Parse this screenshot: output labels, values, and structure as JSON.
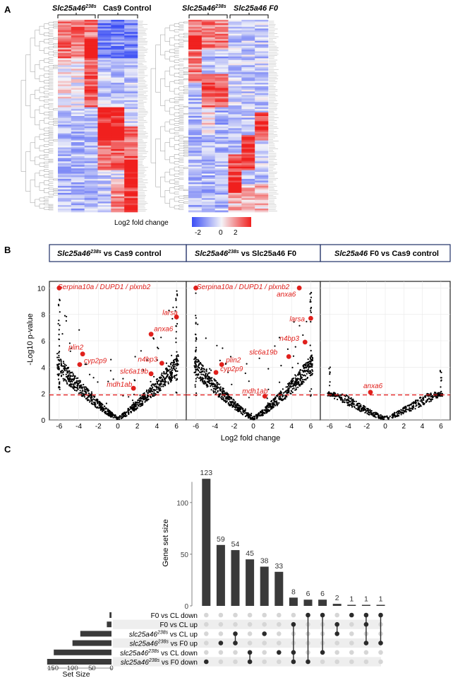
{
  "panel_labels": {
    "a": "A",
    "b": "B",
    "c": "C"
  },
  "colors": {
    "low": "#3a4df5",
    "mid": "#f4f4f8",
    "high": "#f0201e",
    "point": "#000000",
    "highlight": "#e0201c",
    "threshold": "#e02020",
    "bar": "#3a3a3a",
    "dot_on": "#2b2b2b",
    "dot_off": "#d6d6d6",
    "row_shade": "#eeeeee",
    "box_border": "#1f2f66"
  },
  "heatmap": {
    "left": {
      "group1": "Slc25a46",
      "group1_sup": "238s",
      "group2": "Cas9 Control"
    },
    "right": {
      "group1": "Slc25a46",
      "group1_sup": "238s",
      "group2": "Slc25a46 F0"
    },
    "legend_title": "Log2 fold change",
    "legend_ticks": [
      "-2",
      "0",
      "2"
    ]
  },
  "volcano": {
    "ylabel": "-Log10 p-value",
    "xlabel": "Log2 fold change",
    "yticks": [
      "0",
      "2",
      "4",
      "6",
      "8",
      "10"
    ],
    "xticks": [
      "-6",
      "-4",
      "-2",
      "0",
      "2",
      "4",
      "6"
    ],
    "panels": [
      {
        "title_gene": "Slc25a46",
        "title_sup": "238s",
        "title_rest": " vs Cas9 control",
        "top_label": {
          "a": "Serpina10a",
          "b": "DUPD1",
          "c": "plxnb2"
        },
        "labels": [
          "larsa",
          "anxa6",
          "plin2",
          "cyp2p9",
          "n4bp3",
          "slc6a19b",
          "mdh1ab"
        ]
      },
      {
        "title_gene": "Slc25a46",
        "title_sup": "238s",
        "title_rest": " vs Slc25a46 F0",
        "top_label": {
          "a": "Serpina10a",
          "b": "DUPD1",
          "c": "plxnb2"
        },
        "labels": [
          "anxa6",
          "larsa",
          "n4bp3",
          "slc6a19b",
          "plin2",
          "cyp2p9",
          "mdh1ab"
        ]
      },
      {
        "title_gene": "Slc25a46",
        "title_sup": "",
        "title_rest": " F0 vs Cas9 control",
        "labels": [
          "anxa6"
        ]
      }
    ]
  },
  "chart_data": [
    {
      "type": "scatter",
      "title": "Slc25a46238s vs Cas9 control",
      "xlabel": "Log2 fold change",
      "ylabel": "-Log10 p-value",
      "xlim": [
        -7,
        7
      ],
      "ylim": [
        0,
        10.5
      ],
      "threshold_y": 1.9,
      "highlighted": [
        {
          "label": "Serpina10a",
          "x": -6,
          "y": 10
        },
        {
          "label": "larsa",
          "x": 6,
          "y": 7.8
        },
        {
          "label": "anxa6",
          "x": 3.4,
          "y": 6.5
        },
        {
          "label": "plin2",
          "x": -3.6,
          "y": 5
        },
        {
          "label": "cyp2p9",
          "x": -3.9,
          "y": 4.2
        },
        {
          "label": "n4bp3",
          "x": 4.5,
          "y": 4.3
        },
        {
          "label": "slc6a19b",
          "x": 3.4,
          "y": 3.5
        },
        {
          "label": "mdh1ab",
          "x": 1.6,
          "y": 2.4
        }
      ]
    },
    {
      "type": "scatter",
      "title": "Slc25a46238s vs Slc25a46 F0",
      "xlabel": "Log2 fold change",
      "ylabel": "-Log10 p-value",
      "xlim": [
        -7,
        7
      ],
      "ylim": [
        0,
        10.5
      ],
      "threshold_y": 1.9,
      "highlighted": [
        {
          "label": "Serpina10a",
          "x": -6,
          "y": 10
        },
        {
          "label": "anxa6",
          "x": 4.8,
          "y": 10
        },
        {
          "label": "larsa",
          "x": 6,
          "y": 7.7
        },
        {
          "label": "n4bp3",
          "x": 5.4,
          "y": 5.9
        },
        {
          "label": "slc6a19b",
          "x": 3.7,
          "y": 4.8
        },
        {
          "label": "plin2",
          "x": -3.3,
          "y": 4.2
        },
        {
          "label": "cyp2p9",
          "x": -3.9,
          "y": 3.6
        },
        {
          "label": "mdh1ab",
          "x": 1.2,
          "y": 1.8
        }
      ]
    },
    {
      "type": "scatter",
      "title": "Slc25a46 F0 vs Cas9 control",
      "xlabel": "Log2 fold change",
      "ylabel": "-Log10 p-value",
      "xlim": [
        -7,
        7
      ],
      "ylim": [
        0,
        10.5
      ],
      "threshold_y": 1.9,
      "highlighted": [
        {
          "label": "anxa6",
          "x": -1.6,
          "y": 2.1
        }
      ]
    },
    {
      "type": "bar",
      "title": "",
      "ylabel": "Gene set size",
      "yticks": [
        "0",
        "50",
        "100"
      ],
      "ylim": [
        0,
        130
      ],
      "values": [
        123,
        59,
        54,
        45,
        38,
        33,
        8,
        6,
        6,
        2,
        1,
        1,
        1
      ],
      "set_names": [
        "F0 vs CL down",
        "F0 vs CL up",
        "slc25a46238s vs CL up",
        "slc25a46238s vs F0 up",
        "slc25a46238s vs CL down",
        "slc25a46238s vs F0 down"
      ],
      "set_sizes": [
        5,
        12,
        80,
        100,
        148,
        165
      ],
      "set_size_label": "Set Size",
      "set_size_ticks": [
        "150",
        "100",
        "50",
        "0"
      ],
      "set_size_xlim": [
        0,
        170
      ],
      "intersections": [
        [
          5
        ],
        [
          3
        ],
        [
          2,
          3
        ],
        [
          4,
          5
        ],
        [
          2
        ],
        [
          4
        ],
        [
          1,
          4,
          5
        ],
        [
          0,
          5
        ],
        [
          0,
          4
        ],
        [
          1,
          2
        ],
        [
          0
        ],
        [
          0,
          1,
          3
        ],
        [
          0,
          3
        ]
      ]
    }
  ],
  "upset_names": [
    {
      "pre": "F0 vs CL down",
      "sup": "",
      "post": ""
    },
    {
      "pre": "F0 vs CL up",
      "sup": "",
      "post": ""
    },
    {
      "pre": "slc25a46",
      "sup": "238s",
      "post": " vs CL up"
    },
    {
      "pre": "slc25a46",
      "sup": "238s",
      "post": " vs F0 up"
    },
    {
      "pre": "slc25a46",
      "sup": "238s",
      "post": " vs CL down"
    },
    {
      "pre": "slc25a46",
      "sup": "238s",
      "post": " vs F0 down"
    }
  ]
}
